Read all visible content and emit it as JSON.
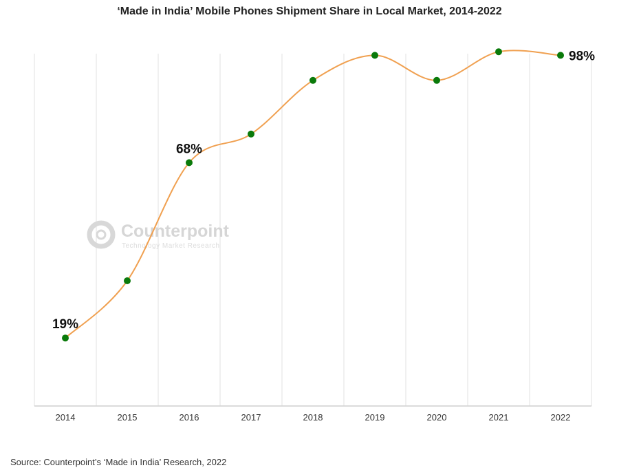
{
  "chart_data": {
    "type": "line",
    "title": "‘Made in India’ Mobile Phones Shipment Share in Local Market, 2014-2022",
    "xlabel": "",
    "ylabel": "",
    "categories": [
      "2014",
      "2015",
      "2016",
      "2017",
      "2018",
      "2019",
      "2020",
      "2021",
      "2022"
    ],
    "values": [
      19,
      35,
      68,
      76,
      91,
      98,
      91,
      99,
      98
    ],
    "data_labels": [
      "19%",
      "",
      "68%",
      "",
      "",
      "",
      "",
      "",
      "98%"
    ],
    "ylim": [
      0,
      100
    ],
    "y_axis_visible": false,
    "grid": "vertical",
    "line_color": "#F0A050",
    "marker_color": "#0A7A0A",
    "gridline_color": "#E2E2E2",
    "axis_color": "#CFCFCF"
  },
  "source_note": "Source: Counterpoint’s ‘Made in India’ Research, 2022",
  "watermark": {
    "name": "Counterpoint",
    "tagline": "Technology Market Research"
  }
}
